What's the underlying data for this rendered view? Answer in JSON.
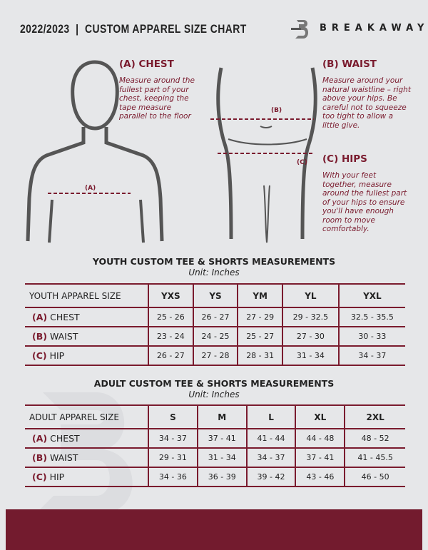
{
  "header": {
    "title": "2022/2023  |  CUSTOM APPAREL SIZE CHART",
    "brand": "BREAKAWAY"
  },
  "measures": {
    "chest": {
      "heading": "(A) CHEST",
      "text": "Measure around the fullest part of your chest, keeping the tape measure parallel to the floor",
      "marker": "(A)"
    },
    "waist": {
      "heading": "(B) WAIST",
      "text": "Measure around your natural waistline – right above your hips. Be careful not to squeeze too tight to allow a little give.",
      "marker": "(B)"
    },
    "hips": {
      "heading": "(C) HIPS",
      "text": "With your feet together, measure around the fullest part of your hips to ensure you'll have enough room to move comfortably.",
      "marker": "(C)"
    }
  },
  "youth": {
    "title": "YOUTH CUSTOM TEE & SHORTS MEASUREMENTS",
    "unit": "Unit: Inches",
    "header": "YOUTH APPAREL SIZE",
    "sizes": [
      "YXS",
      "YS",
      "YM",
      "YL",
      "YXL"
    ],
    "rows": [
      {
        "tag": "(A)",
        "label": "CHEST",
        "values": [
          "25 - 26",
          "26 - 27",
          "27 - 29",
          "29 - 32.5",
          "32.5 - 35.5"
        ]
      },
      {
        "tag": "(B)",
        "label": "WAIST",
        "values": [
          "23 - 24",
          "24 - 25",
          "25 - 27",
          "27 - 30",
          "30 - 33"
        ]
      },
      {
        "tag": "(C)",
        "label": "HIP",
        "values": [
          "26 - 27",
          "27 - 28",
          "28 - 31",
          "31 - 34",
          "34 - 37"
        ]
      }
    ]
  },
  "adult": {
    "title": "ADULT CUSTOM TEE & SHORTS MEASUREMENTS",
    "unit": "Unit: Inches",
    "header": "ADULT APPAREL SIZE",
    "sizes": [
      "S",
      "M",
      "L",
      "XL",
      "2XL"
    ],
    "rows": [
      {
        "tag": "(A)",
        "label": "CHEST",
        "values": [
          "34 - 37",
          "37 - 41",
          "41 - 44",
          "44 - 48",
          "48 - 52"
        ]
      },
      {
        "tag": "(B)",
        "label": "WAIST",
        "values": [
          "29 - 31",
          "31 - 34",
          "34 - 37",
          "37 - 41",
          "41 - 45.5"
        ]
      },
      {
        "tag": "(C)",
        "label": "HIP",
        "values": [
          "34 - 36",
          "36 - 39",
          "39 - 42",
          "43 - 46",
          "46 - 50"
        ]
      }
    ]
  },
  "colors": {
    "accent": "#7a1b2e",
    "background": "#e6e7e9"
  }
}
